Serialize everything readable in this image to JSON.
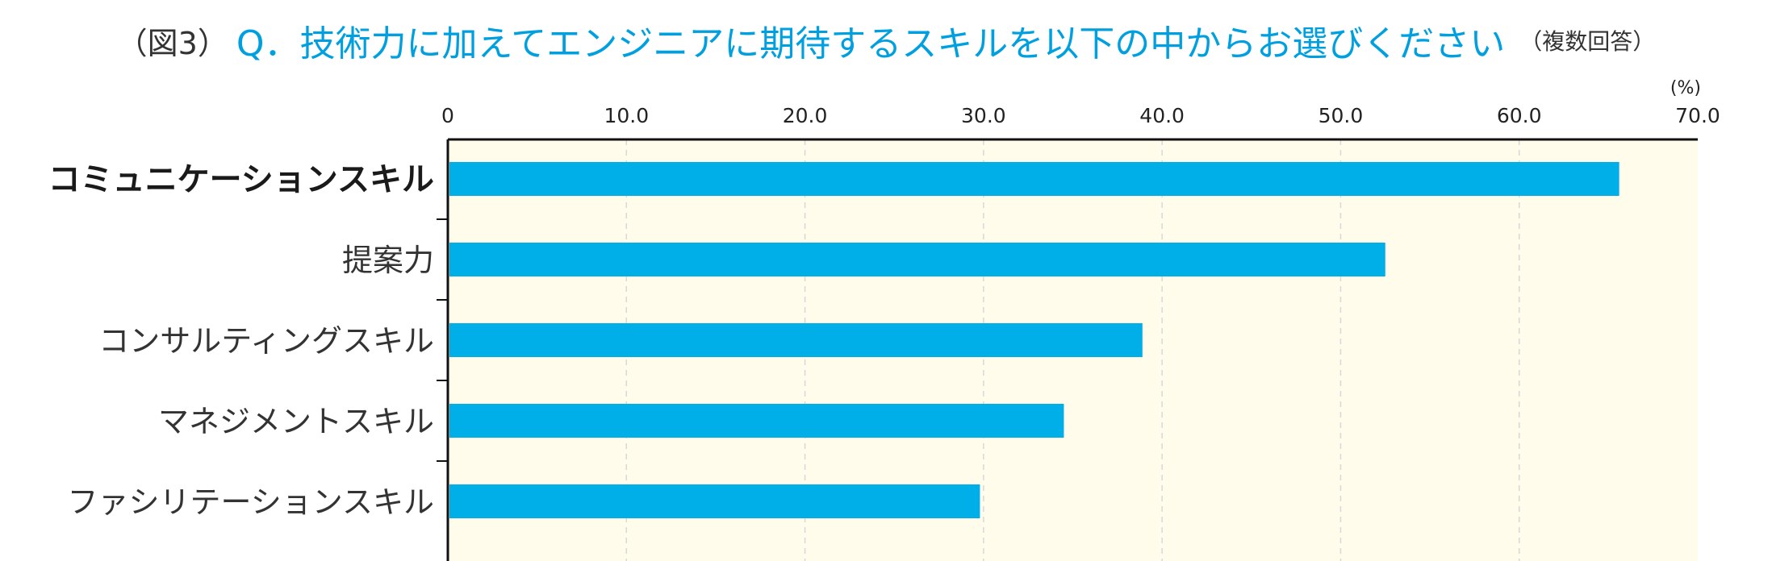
{
  "title": {
    "prefix": "（図3）",
    "main": "Q．技術力に加えてエンジニアに期待するスキルを以下の中からお選びください",
    "suffix": "（複数回答）"
  },
  "chart_data": {
    "type": "bar",
    "orientation": "horizontal",
    "unit_label": "(%)",
    "xlim": [
      0,
      70
    ],
    "xticks": [
      "0",
      "10.0",
      "20.0",
      "30.0",
      "40.0",
      "50.0",
      "60.0",
      "70.0"
    ],
    "categories": [
      "コミュニケーションスキル",
      "提案力",
      "コンサルティングスキル",
      "マネジメントスキル",
      "ファシリテーションスキル"
    ],
    "values": [
      65.6,
      52.5,
      38.9,
      34.5,
      29.8
    ],
    "highlight_index": 0,
    "grid": true,
    "colors": {
      "bar": "#00aee8",
      "plot_bg": "#fffcec",
      "grid": "#d8d8d8",
      "axis": "#111111",
      "title_accent": "#00a0e0",
      "text": "#333333"
    }
  }
}
